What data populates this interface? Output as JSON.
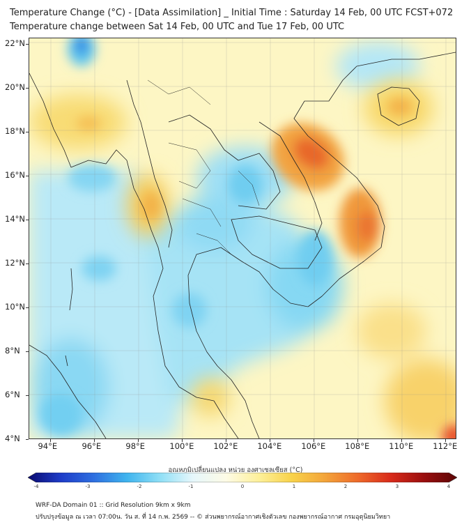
{
  "header": {
    "title_line1": "Temperature Change (°C) - [Data Assimilation] _ Initial Time : Saturday 14 Feb, 00 UTC FCST+072",
    "title_line2": "Temperature change between Sat 14 Feb, 00 UTC and Tue 17 Feb, 00 UTC"
  },
  "map": {
    "lat_labels": [
      "22°N",
      "20°N",
      "18°N",
      "16°N",
      "14°N",
      "12°N",
      "10°N",
      "8°N",
      "6°N",
      "4°N"
    ],
    "lon_labels": [
      "94°E",
      "96°E",
      "98°E",
      "100°E",
      "102°E",
      "104°E",
      "106°E",
      "108°E",
      "110°E",
      "112°E"
    ],
    "lat_values": [
      22,
      20,
      18,
      16,
      14,
      12,
      10,
      8,
      6,
      4
    ],
    "lon_values": [
      94,
      96,
      98,
      100,
      102,
      104,
      106,
      108,
      110,
      112
    ],
    "lat_range": [
      4,
      22.3
    ],
    "lon_range": [
      93,
      112.5
    ],
    "colors": {
      "background": "#fdf6c4",
      "cool": "#7fd6f2",
      "cool_strong": "#3fbde8",
      "deep_blue": "#2f7fe0",
      "warm": "#f8cf55",
      "orange": "#f2993a",
      "hot": "#e8522a"
    }
  },
  "colorbar": {
    "title": "อุณหภูมิเปลี่ยนแปลง หน่วย องศาเซลเซียส (°C)",
    "tick_labels": [
      "-4",
      "-3",
      "-2",
      "-1",
      "0",
      "1",
      "2",
      "3",
      "4"
    ],
    "min": -4,
    "max": 4,
    "stops": [
      "#0a0a70",
      "#1e3cc8",
      "#2e6fe0",
      "#3fb4ee",
      "#8fdff6",
      "#e6f7fb",
      "#fdfbe6",
      "#fdf09a",
      "#f8d24a",
      "#f3a43a",
      "#ee6a2a",
      "#d82a1a",
      "#9a0e0e",
      "#5c0505"
    ]
  },
  "footer": {
    "line1": "WRF-DA Domain 01 :: Grid Resolution 9km x 9km",
    "line2": "ปรับปรุงข้อมูล ณ เวลา 07:00น. วัน ส. ที่ 14 ก.พ. 2569 -- © ส่วนพยากรณ์อากาศเชิงตัวเลข กองพยากรณ์อากาศ กรมอุตุนิยมวิทยา"
  }
}
